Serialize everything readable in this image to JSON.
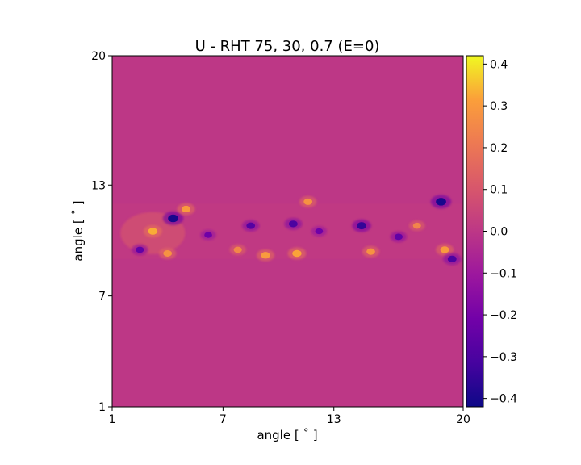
{
  "chart_data": {
    "type": "heatmap",
    "title": "U - RHT 75, 30, 0.7 (E=0)",
    "xlabel": "angle [$^\\circ$]",
    "ylabel": "angle [$^\\circ$]",
    "xlabel_display": "angle [ ˚ ]",
    "ylabel_display": "angle [ ˚ ]",
    "xlim": [
      1,
      20
    ],
    "ylim": [
      1,
      20
    ],
    "xticks": [
      1,
      7,
      13,
      20
    ],
    "yticks": [
      1,
      7,
      13,
      20
    ],
    "colormap": "plasma",
    "colorbar": {
      "vmin": -0.42,
      "vmax": 0.42,
      "ticks": [
        -0.4,
        -0.3,
        -0.2,
        -0.1,
        0.0,
        0.1,
        0.2,
        0.3,
        0.4
      ],
      "tick_labels": [
        "−0.4",
        "−0.3",
        "−0.2",
        "−0.1",
        "0.0",
        "0.1",
        "0.2",
        "0.3",
        "0.4"
      ]
    },
    "background_value": 0.0,
    "band_y_range": [
      9.0,
      12.0
    ],
    "features": [
      {
        "x": 4.3,
        "y": 11.2,
        "value": -0.4
      },
      {
        "x": 3.2,
        "y": 10.5,
        "value": 0.33
      },
      {
        "x": 2.5,
        "y": 9.5,
        "value": -0.25
      },
      {
        "x": 4.0,
        "y": 9.3,
        "value": 0.28
      },
      {
        "x": 5.0,
        "y": 11.7,
        "value": 0.3
      },
      {
        "x": 6.2,
        "y": 10.3,
        "value": -0.22
      },
      {
        "x": 7.8,
        "y": 9.5,
        "value": 0.25
      },
      {
        "x": 8.5,
        "y": 10.8,
        "value": -0.28
      },
      {
        "x": 9.3,
        "y": 9.2,
        "value": 0.3
      },
      {
        "x": 10.8,
        "y": 10.9,
        "value": -0.3
      },
      {
        "x": 11.6,
        "y": 12.1,
        "value": 0.28
      },
      {
        "x": 11.0,
        "y": 9.3,
        "value": 0.32
      },
      {
        "x": 12.2,
        "y": 10.5,
        "value": -0.22
      },
      {
        "x": 14.5,
        "y": 10.8,
        "value": -0.35
      },
      {
        "x": 15.0,
        "y": 9.4,
        "value": 0.28
      },
      {
        "x": 16.5,
        "y": 10.2,
        "value": -0.25
      },
      {
        "x": 17.5,
        "y": 10.8,
        "value": 0.24
      },
      {
        "x": 18.8,
        "y": 12.1,
        "value": -0.4
      },
      {
        "x": 19.0,
        "y": 9.5,
        "value": 0.3
      },
      {
        "x": 19.4,
        "y": 9.0,
        "value": -0.3
      }
    ]
  }
}
